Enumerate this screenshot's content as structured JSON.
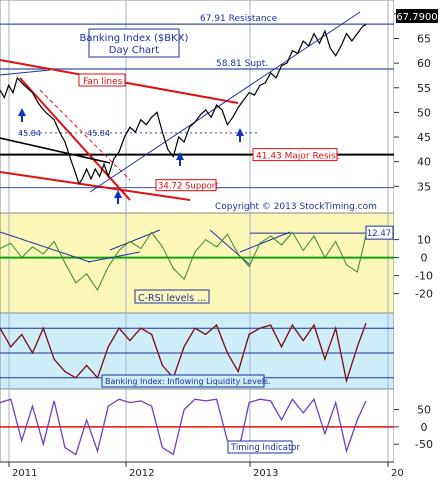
{
  "chart_data": [
    {
      "type": "line",
      "title": "Banking Index ($BKX)",
      "subtitle": "Day Chart",
      "ylim": [
        31,
        72
      ],
      "y_ticks": [
        35,
        40,
        45,
        50,
        55,
        60,
        65,
        70
      ],
      "x_range": [
        "2011-01",
        "2013-11"
      ],
      "x_ticks": [
        {
          "label": "2011",
          "x": "2011-01"
        },
        {
          "label": "2012",
          "x": "2012-01"
        },
        {
          "label": "2013",
          "x": "2013-01"
        },
        {
          "label": "20",
          "x": "2014-01"
        }
      ],
      "last_price": "67.7900",
      "copyright": "Copyright © 2013 StockTiming.com",
      "series": [
        {
          "values": [
            [
              0.0,
              54.5
            ],
            [
              0.4,
              53.0
            ],
            [
              0.8,
              55.5
            ],
            [
              1.2,
              54.0
            ],
            [
              1.6,
              57.0
            ],
            [
              2.0,
              56.0
            ],
            [
              2.5,
              55.0
            ],
            [
              3.0,
              54.0
            ],
            [
              3.5,
              52.0
            ],
            [
              4.0,
              50.5
            ],
            [
              4.5,
              49.5
            ],
            [
              5.0,
              48.5
            ],
            [
              5.5,
              46.0
            ],
            [
              6.0,
              44.0
            ],
            [
              6.3,
              42.0
            ],
            [
              6.6,
              40.0
            ],
            [
              7.0,
              37.5
            ],
            [
              7.3,
              35.5
            ],
            [
              7.6,
              36.5
            ],
            [
              8.0,
              38.5
            ],
            [
              8.4,
              36.5
            ],
            [
              8.8,
              38.5
            ],
            [
              9.2,
              37.0
            ],
            [
              9.6,
              39.5
            ],
            [
              10.0,
              37.0
            ],
            [
              10.5,
              40.5
            ],
            [
              11.0,
              42.0
            ],
            [
              11.5,
              45.0
            ],
            [
              12.0,
              47.0
            ],
            [
              12.5,
              46.0
            ],
            [
              13.0,
              48.5
            ],
            [
              13.5,
              47.5
            ],
            [
              14.0,
              49.0
            ],
            [
              14.5,
              50.0
            ],
            [
              15.0,
              46.0
            ],
            [
              15.5,
              42.5
            ],
            [
              16.0,
              41.0
            ],
            [
              16.5,
              45.0
            ],
            [
              17.0,
              44.0
            ],
            [
              17.5,
              47.0
            ],
            [
              18.0,
              48.0
            ],
            [
              18.5,
              49.5
            ],
            [
              19.0,
              50.5
            ],
            [
              19.5,
              49.0
            ],
            [
              20.0,
              51.5
            ],
            [
              20.5,
              50.5
            ],
            [
              21.0,
              47.5
            ],
            [
              21.5,
              49.0
            ],
            [
              22.0,
              51.0
            ],
            [
              22.5,
              52.5
            ],
            [
              23.0,
              54.0
            ],
            [
              23.5,
              53.5
            ],
            [
              24.0,
              55.5
            ],
            [
              24.5,
              56.0
            ],
            [
              25.0,
              58.0
            ],
            [
              25.5,
              57.0
            ],
            [
              26.0,
              59.5
            ],
            [
              26.5,
              60.0
            ],
            [
              27.0,
              62.5
            ],
            [
              27.5,
              62.0
            ],
            [
              28.0,
              64.5
            ],
            [
              28.5,
              63.5
            ],
            [
              29.0,
              66.0
            ],
            [
              29.5,
              64.0
            ],
            [
              30.0,
              66.5
            ],
            [
              30.5,
              63.0
            ],
            [
              31.0,
              61.5
            ],
            [
              31.5,
              63.5
            ],
            [
              32.0,
              66.0
            ],
            [
              32.5,
              64.5
            ],
            [
              33.0,
              66.0
            ],
            [
              33.5,
              67.5
            ],
            [
              33.8,
              67.79
            ]
          ]
        }
      ],
      "annotations": [
        {
          "text": "67.91 Resistance",
          "value": 67.91,
          "kind": "hline"
        },
        {
          "text": "58.81 Supt.",
          "value": 58.81,
          "kind": "hline"
        },
        {
          "text": "45.84",
          "value": 45.84,
          "kind": "dotted"
        },
        {
          "text": "45.84",
          "value": 45.84,
          "kind": "dotted"
        },
        {
          "text": "41.43 Major Resist",
          "value": 41.43,
          "kind": "hline"
        },
        {
          "text": "34.72 Support",
          "value": 34.72,
          "kind": "hline"
        },
        {
          "text": "Fan lines",
          "kind": "label"
        }
      ]
    },
    {
      "type": "line",
      "title": "C-RSI levels ...",
      "ylim": [
        -28,
        22
      ],
      "y_ticks": [
        10,
        0,
        -10,
        -20
      ],
      "last_value": "12.47",
      "series": [
        {
          "values": [
            [
              0,
              5
            ],
            [
              1,
              8
            ],
            [
              2,
              0
            ],
            [
              3,
              6
            ],
            [
              4,
              2
            ],
            [
              5,
              9
            ],
            [
              6,
              -3
            ],
            [
              7,
              -14
            ],
            [
              8,
              -9
            ],
            [
              9,
              -18
            ],
            [
              10,
              -5
            ],
            [
              11,
              4
            ],
            [
              12,
              9
            ],
            [
              13,
              5
            ],
            [
              14,
              14
            ],
            [
              15,
              6
            ],
            [
              16,
              -6
            ],
            [
              17,
              -12
            ],
            [
              18,
              3
            ],
            [
              19,
              10
            ],
            [
              20,
              6
            ],
            [
              21,
              13
            ],
            [
              22,
              2
            ],
            [
              23,
              -5
            ],
            [
              24,
              8
            ],
            [
              25,
              12
            ],
            [
              26,
              7
            ],
            [
              27,
              14
            ],
            [
              28,
              4
            ],
            [
              29,
              12
            ],
            [
              30,
              0
            ],
            [
              31,
              9
            ],
            [
              32,
              -4
            ],
            [
              33,
              -8
            ],
            [
              33.8,
              12.47
            ]
          ]
        }
      ]
    },
    {
      "type": "line",
      "title": "Banking Index: Inflowing Liquidity Levels.",
      "series": [
        {
          "values": [
            [
              0,
              0.9
            ],
            [
              1,
              0.6
            ],
            [
              2,
              0.8
            ],
            [
              3,
              0.5
            ],
            [
              4,
              0.9
            ],
            [
              5,
              0.4
            ],
            [
              6,
              0.2
            ],
            [
              7,
              0.1
            ],
            [
              8,
              0.3
            ],
            [
              9,
              0.1
            ],
            [
              10,
              0.6
            ],
            [
              11,
              0.9
            ],
            [
              12,
              0.7
            ],
            [
              13,
              0.9
            ],
            [
              14,
              0.8
            ],
            [
              15,
              0.3
            ],
            [
              16,
              0.1
            ],
            [
              17,
              0.6
            ],
            [
              18,
              0.9
            ],
            [
              19,
              0.8
            ],
            [
              20,
              0.95
            ],
            [
              21,
              0.5
            ],
            [
              22,
              0.2
            ],
            [
              23,
              0.8
            ],
            [
              24,
              0.9
            ],
            [
              25,
              0.95
            ],
            [
              26,
              0.6
            ],
            [
              27,
              0.95
            ],
            [
              28,
              0.7
            ],
            [
              29,
              0.95
            ],
            [
              30,
              0.4
            ],
            [
              31,
              0.9
            ],
            [
              32,
              0.05
            ],
            [
              33,
              0.6
            ],
            [
              33.8,
              0.98
            ]
          ]
        }
      ]
    },
    {
      "type": "line",
      "title": "Timing Indicator",
      "ylim": [
        -90,
        95
      ],
      "y_ticks": [
        50,
        0,
        -50
      ],
      "series": [
        {
          "values": [
            [
              0,
              70
            ],
            [
              1,
              80
            ],
            [
              2,
              -40
            ],
            [
              3,
              60
            ],
            [
              4,
              -50
            ],
            [
              5,
              75
            ],
            [
              6,
              -60
            ],
            [
              7,
              -80
            ],
            [
              8,
              20
            ],
            [
              9,
              -70
            ],
            [
              10,
              60
            ],
            [
              11,
              80
            ],
            [
              12,
              70
            ],
            [
              13,
              75
            ],
            [
              14,
              60
            ],
            [
              15,
              -60
            ],
            [
              16,
              -80
            ],
            [
              17,
              50
            ],
            [
              18,
              80
            ],
            [
              19,
              75
            ],
            [
              20,
              80
            ],
            [
              21,
              -40
            ],
            [
              22,
              -75
            ],
            [
              23,
              70
            ],
            [
              24,
              80
            ],
            [
              25,
              75
            ],
            [
              26,
              20
            ],
            [
              27,
              80
            ],
            [
              28,
              40
            ],
            [
              29,
              80
            ],
            [
              30,
              -20
            ],
            [
              31,
              70
            ],
            [
              32,
              -70
            ],
            [
              33,
              20
            ],
            [
              33.8,
              75
            ]
          ]
        }
      ]
    }
  ]
}
